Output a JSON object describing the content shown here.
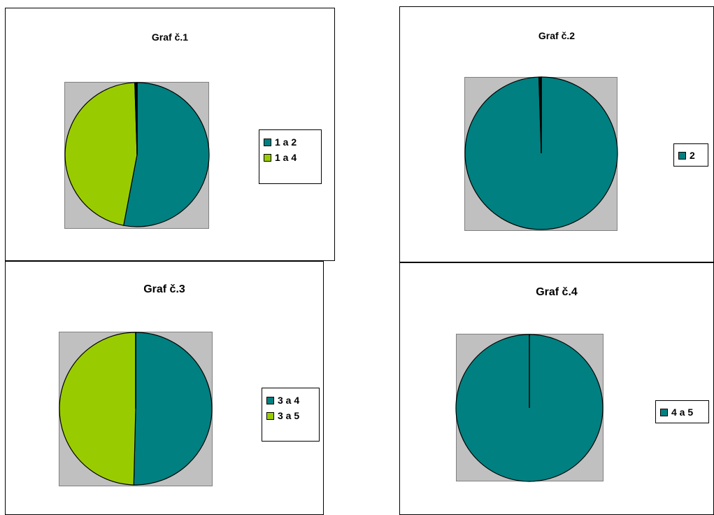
{
  "colors": {
    "teal": "#008080",
    "lime": "#99cc00",
    "plot_bg": "#c0c0c0"
  },
  "chart_data": [
    {
      "type": "pie",
      "title": "Graf č.1",
      "legend_position": "right",
      "slices": [
        {
          "label": "1 a 2",
          "value": 53,
          "color": "#008080"
        },
        {
          "label": "1 a 4",
          "value": 46.5,
          "color": "#99cc00"
        },
        {
          "label": "",
          "value": 0.5,
          "color": "#000000"
        }
      ]
    },
    {
      "type": "pie",
      "title": "Graf č.2",
      "legend_position": "right",
      "slices": [
        {
          "label": "2",
          "value": 99.5,
          "color": "#008080"
        },
        {
          "label": "",
          "value": 0.5,
          "color": "#000000"
        }
      ]
    },
    {
      "type": "pie",
      "title": "Graf č.3",
      "legend_position": "right",
      "slices": [
        {
          "label": "3 a 4",
          "value": 50.4,
          "color": "#008080"
        },
        {
          "label": "3 a 5",
          "value": 49.6,
          "color": "#99cc00"
        }
      ]
    },
    {
      "type": "pie",
      "title": "Graf č.4",
      "legend_position": "right",
      "slices": [
        {
          "label": "4 a 5",
          "value": 100,
          "color": "#008080"
        }
      ]
    }
  ]
}
